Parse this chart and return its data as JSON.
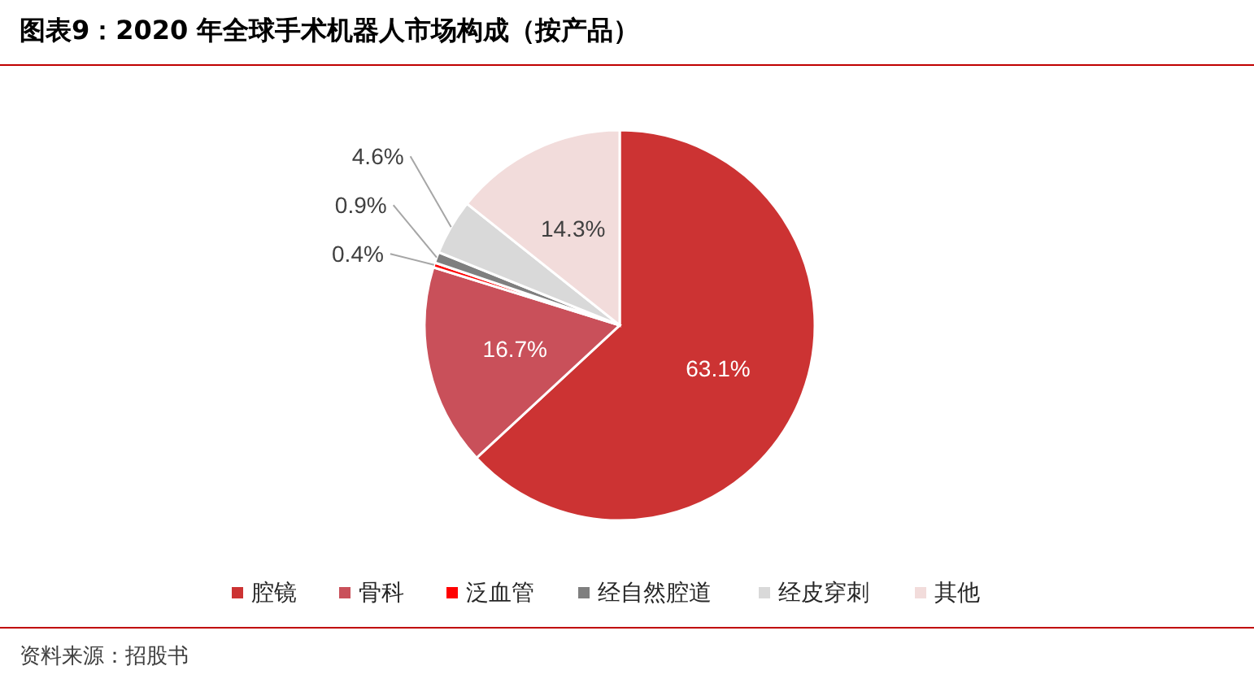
{
  "chart_data": {
    "type": "pie",
    "title": "图表9：2020 年全球手术机器人市场构成（按产品）",
    "categories": [
      "腔镜",
      "骨科",
      "泛血管",
      "经自然腔道",
      "经皮穿刺",
      "其他"
    ],
    "values": [
      63.1,
      16.7,
      0.4,
      0.9,
      4.6,
      14.3
    ],
    "value_labels": [
      "63.1%",
      "16.7%",
      "0.4%",
      "0.9%",
      "4.6%",
      "14.3%"
    ],
    "colors": [
      "#cc3333",
      "#c9505a",
      "#ff0000",
      "#7f7f7f",
      "#d9d9d9",
      "#f2dcdb"
    ],
    "legend": "bottom",
    "annotations": [
      "资料来源：招股书"
    ]
  }
}
